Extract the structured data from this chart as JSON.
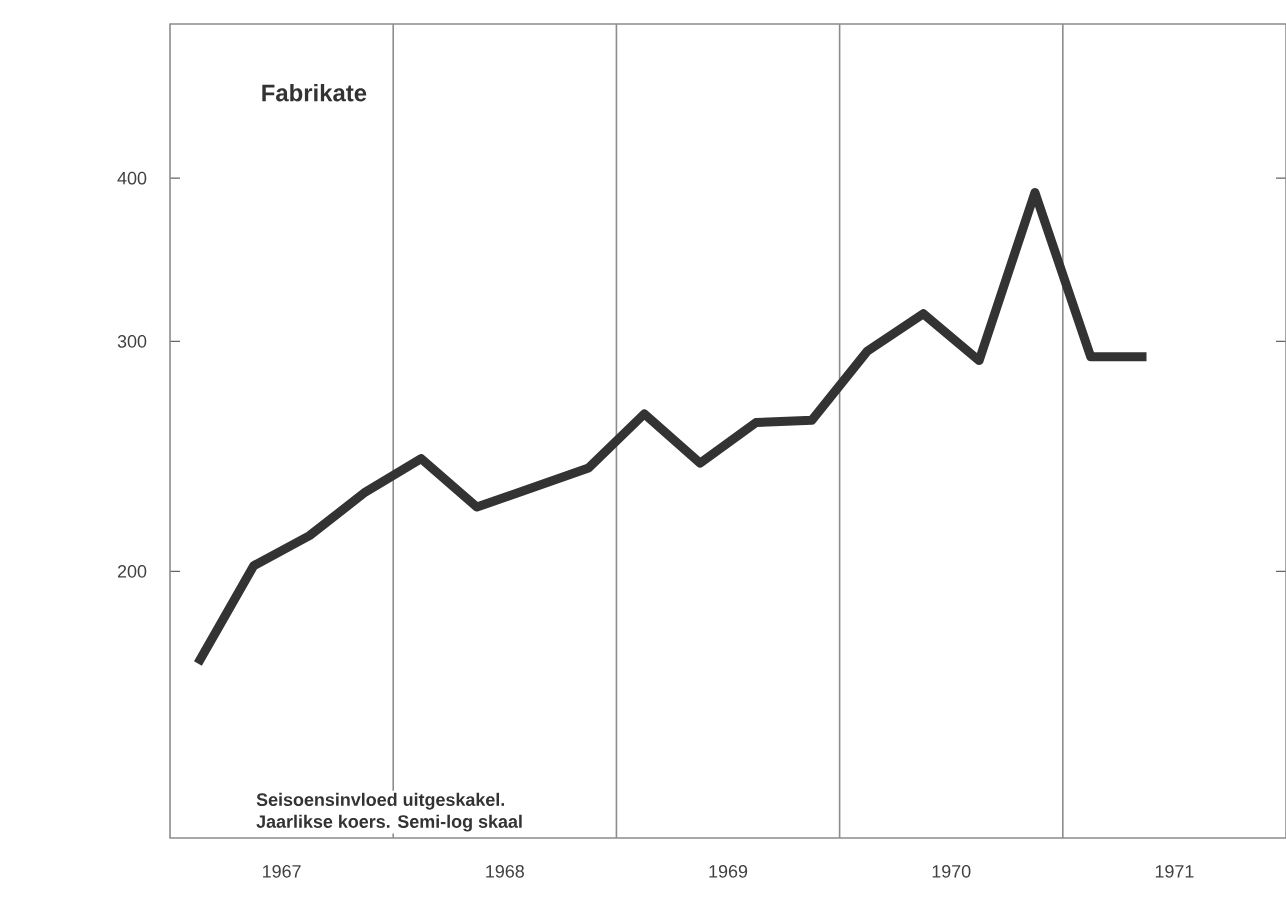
{
  "chart_data": {
    "type": "line",
    "title": "Fabrikate",
    "annotations": [
      "Seisoensinvloed uitgeskakel.",
      "Jaarlikse koers. Semi-log skaal"
    ],
    "x": [
      1967.125,
      1967.375,
      1967.625,
      1967.875,
      1968.125,
      1968.375,
      1968.875,
      1969.125,
      1969.375,
      1969.625,
      1969.875,
      1970.125,
      1970.375,
      1970.625,
      1970.875,
      1971.125,
      1971.375
    ],
    "series": [
      {
        "color": "#333333",
        "values": [
          170,
          202,
          213,
          230,
          244,
          224,
          240,
          264,
          242,
          260,
          261,
          295,
          315,
          290,
          390,
          292,
          292
        ]
      }
    ],
    "log": "y",
    "grid": "x",
    "marker": "none",
    "line_style": "solid",
    "xlim": [
      1967,
      1972
    ],
    "ylim": [
      125,
      525
    ],
    "xticks": [
      {
        "value": 1967.5,
        "label": "1967"
      },
      {
        "value": 1968,
        "label": null
      },
      {
        "value": 1968.5,
        "label": "1968"
      },
      {
        "value": 1969,
        "label": null
      },
      {
        "value": 1969.5,
        "label": "1969"
      },
      {
        "value": 1970,
        "label": null
      },
      {
        "value": 1970.5,
        "label": "1970"
      },
      {
        "value": 1971,
        "label": null
      },
      {
        "value": 1971.5,
        "label": "1971"
      }
    ],
    "yticks": [
      200,
      300,
      400
    ]
  }
}
